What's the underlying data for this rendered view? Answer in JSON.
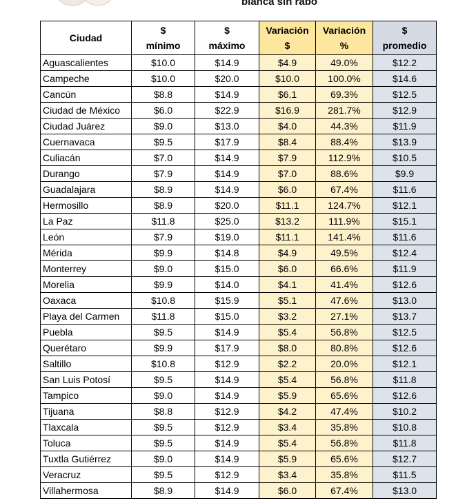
{
  "title_fragment": "blanca sin rabo",
  "table": {
    "header": [
      [
        "Ciudad"
      ],
      [
        "$",
        "mínimo"
      ],
      [
        "$",
        "máximo"
      ],
      [
        "Variación",
        "$"
      ],
      [
        "Variación",
        "%"
      ],
      [
        "$",
        "promedio"
      ]
    ],
    "rows": [
      [
        "Aguascalientes",
        "$10.0",
        "$14.9",
        "$4.9",
        "49.0%",
        "$12.2"
      ],
      [
        "Campeche",
        "$10.0",
        "$20.0",
        "$10.0",
        "100.0%",
        "$14.6"
      ],
      [
        "Cancún",
        "$8.8",
        "$14.9",
        "$6.1",
        "69.3%",
        "$12.5"
      ],
      [
        "Ciudad de México",
        "$6.0",
        "$22.9",
        "$16.9",
        "281.7%",
        "$12.9"
      ],
      [
        "Ciudad Juárez",
        "$9.0",
        "$13.0",
        "$4.0",
        "44.3%",
        "$11.9"
      ],
      [
        "Cuernavaca",
        "$9.5",
        "$17.9",
        "$8.4",
        "88.4%",
        "$13.9"
      ],
      [
        "Culiacán",
        "$7.0",
        "$14.9",
        "$7.9",
        "112.9%",
        "$10.5"
      ],
      [
        "Durango",
        "$7.9",
        "$14.9",
        "$7.0",
        "88.6%",
        "$9.9"
      ],
      [
        "Guadalajara",
        "$8.9",
        "$14.9",
        "$6.0",
        "67.4%",
        "$11.6"
      ],
      [
        "Hermosillo",
        "$8.9",
        "$20.0",
        "$11.1",
        "124.7%",
        "$12.1"
      ],
      [
        "La Paz",
        "$11.8",
        "$25.0",
        "$13.2",
        "111.9%",
        "$15.1"
      ],
      [
        "León",
        "$7.9",
        "$19.0",
        "$11.1",
        "141.4%",
        "$11.6"
      ],
      [
        "Mérida",
        "$9.9",
        "$14.8",
        "$4.9",
        "49.5%",
        "$12.4"
      ],
      [
        "Monterrey",
        "$9.0",
        "$15.0",
        "$6.0",
        "66.6%",
        "$11.9"
      ],
      [
        "Morelia",
        "$9.9",
        "$14.0",
        "$4.1",
        "41.4%",
        "$12.6"
      ],
      [
        "Oaxaca",
        "$10.8",
        "$15.9",
        "$5.1",
        "47.6%",
        "$13.0"
      ],
      [
        "Playa del Carmen",
        "$11.8",
        "$15.0",
        "$3.2",
        "27.1%",
        "$13.7"
      ],
      [
        "Puebla",
        "$9.5",
        "$14.9",
        "$5.4",
        "56.8%",
        "$12.5"
      ],
      [
        "Querétaro",
        "$9.9",
        "$17.9",
        "$8.0",
        "80.8%",
        "$12.6"
      ],
      [
        "Saltillo",
        "$10.8",
        "$12.9",
        "$2.2",
        "20.0%",
        "$12.1"
      ],
      [
        "San Luis Potosí",
        "$9.5",
        "$14.9",
        "$5.4",
        "56.8%",
        "$11.8"
      ],
      [
        "Tampico",
        "$9.0",
        "$14.9",
        "$5.9",
        "65.6%",
        "$12.6"
      ],
      [
        "Tijuana",
        "$8.8",
        "$12.9",
        "$4.2",
        "47.4%",
        "$10.2"
      ],
      [
        "Tlaxcala",
        "$9.5",
        "$12.9",
        "$3.4",
        "35.8%",
        "$10.8"
      ],
      [
        "Toluca",
        "$9.5",
        "$14.9",
        "$5.4",
        "56.8%",
        "$11.8"
      ],
      [
        "Tuxtla Gutiérrez",
        "$9.0",
        "$14.9",
        "$5.9",
        "65.6%",
        "$12.7"
      ],
      [
        "Veracruz",
        "$9.5",
        "$12.9",
        "$3.4",
        "35.8%",
        "$11.5"
      ],
      [
        "Villahermosa",
        "$8.9",
        "$14.9",
        "$6.0",
        "67.4%",
        "$13.0"
      ]
    ]
  }
}
